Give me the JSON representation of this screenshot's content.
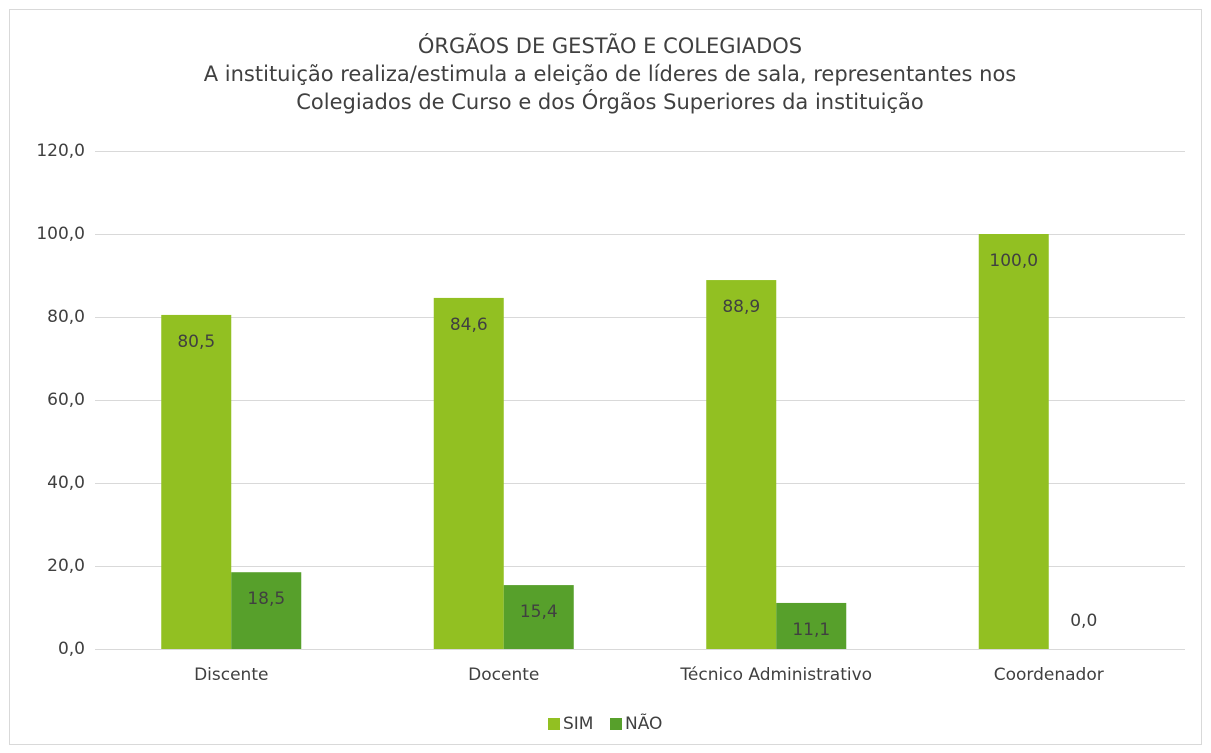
{
  "chart_data": {
    "type": "bar",
    "title": "ÓRGÃOS DE GESTÃO E COLEGIADOS",
    "subtitle": [
      "A instituição realiza/estimula a eleição de líderes de sala, representantes nos",
      "Colegiados de Curso e dos Órgãos Superiores da instituição"
    ],
    "categories": [
      "Discente",
      "Docente",
      "Técnico Administrativo",
      "Coordenador"
    ],
    "series": [
      {
        "name": "SIM",
        "color": "#92c022",
        "values": [
          80.5,
          84.6,
          88.9,
          100.0
        ],
        "value_labels": [
          "80,5",
          "84,6",
          "88,9",
          "100,0"
        ]
      },
      {
        "name": "NÃO",
        "color": "#57a02b",
        "values": [
          18.5,
          15.4,
          11.1,
          0.0
        ],
        "value_labels": [
          "18,5",
          "15,4",
          "11,1",
          "0,0"
        ]
      }
    ],
    "ylim": [
      0,
      120
    ],
    "yticks": [
      {
        "value": 0,
        "label": "0,0"
      },
      {
        "value": 20,
        "label": "20,0"
      },
      {
        "value": 40,
        "label": "40,0"
      },
      {
        "value": 60,
        "label": "60,0"
      },
      {
        "value": 80,
        "label": "80,0"
      },
      {
        "value": 100,
        "label": "100,0"
      },
      {
        "value": 120,
        "label": "120,0"
      }
    ],
    "grid": true,
    "legend": "bottom"
  }
}
